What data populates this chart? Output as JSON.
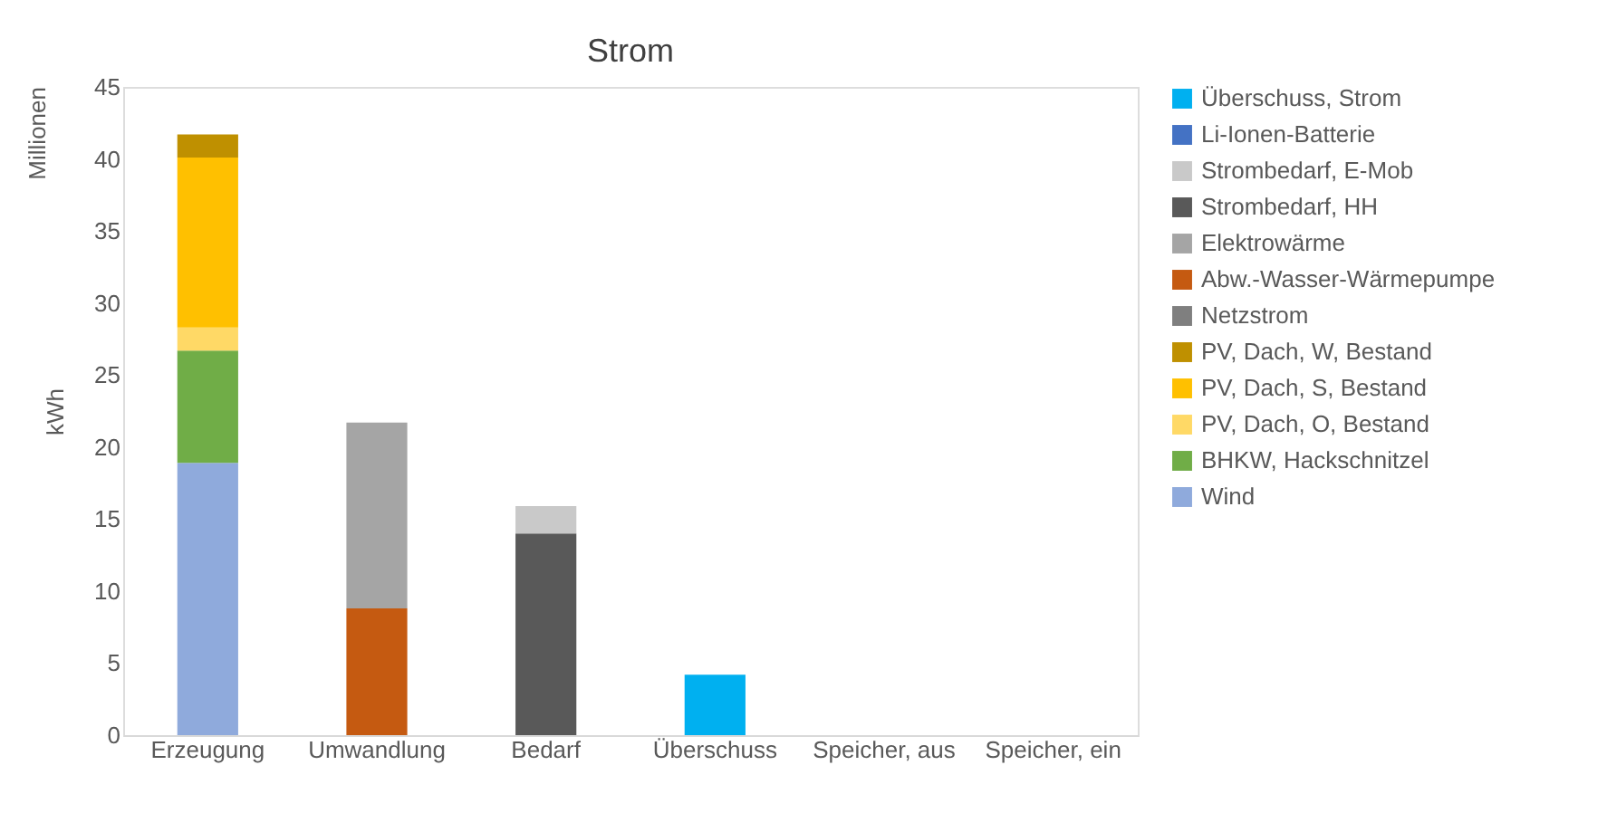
{
  "chart_data": {
    "type": "bar",
    "title": "Strom",
    "ylabel": "kWh",
    "annotations": [
      "Millionen"
    ],
    "stacked": true,
    "legend": "right",
    "grid": false,
    "categories": [
      "Erzeugung",
      "Umwandlung",
      "Bedarf",
      "Überschuss",
      "Speicher, aus",
      "Speicher, ein"
    ],
    "ylim": [
      0,
      45
    ],
    "yticks": [
      0,
      5,
      10,
      15,
      20,
      25,
      30,
      35,
      40,
      45
    ],
    "series": [
      {
        "name": "Wind",
        "color": "#8faadc",
        "values": [
          18.9,
          null,
          null,
          null,
          null,
          null
        ]
      },
      {
        "name": "BHKW, Hackschnitzel",
        "color": "#70ad47",
        "values": [
          7.8,
          null,
          null,
          null,
          null,
          null
        ]
      },
      {
        "name": "PV, Dach, O, Bestand",
        "color": "#ffd966",
        "values": [
          1.6,
          null,
          null,
          null,
          null,
          null
        ]
      },
      {
        "name": "PV, Dach, S, Bestand",
        "color": "#ffc000",
        "values": [
          11.8,
          null,
          null,
          null,
          null,
          null
        ]
      },
      {
        "name": "PV, Dach, W, Bestand",
        "color": "#bf9000",
        "values": [
          1.6,
          null,
          null,
          null,
          null,
          null
        ]
      },
      {
        "name": "Netzstrom",
        "color": "#7f7f7f",
        "values": [
          null,
          null,
          null,
          null,
          null,
          null
        ]
      },
      {
        "name": "Abw.-Wasser-Wärmepumpe",
        "color": "#c55a11",
        "values": [
          null,
          8.8,
          null,
          null,
          null,
          null
        ]
      },
      {
        "name": "Elektrowärme",
        "color": "#a5a5a5",
        "values": [
          null,
          12.9,
          null,
          null,
          null,
          null
        ]
      },
      {
        "name": "Strombedarf, HH",
        "color": "#595959",
        "values": [
          null,
          null,
          14.0,
          null,
          null,
          null
        ]
      },
      {
        "name": "Strombedarf, E-Mob",
        "color": "#c9c9c9",
        "values": [
          null,
          null,
          1.9,
          null,
          null,
          null
        ]
      },
      {
        "name": "Li-Ionen-Batterie",
        "color": "#4472c4",
        "values": [
          null,
          null,
          null,
          null,
          null,
          null
        ]
      },
      {
        "name": "Überschuss, Strom",
        "color": "#00b0f0",
        "values": [
          null,
          null,
          null,
          4.2,
          null,
          null
        ]
      }
    ]
  }
}
